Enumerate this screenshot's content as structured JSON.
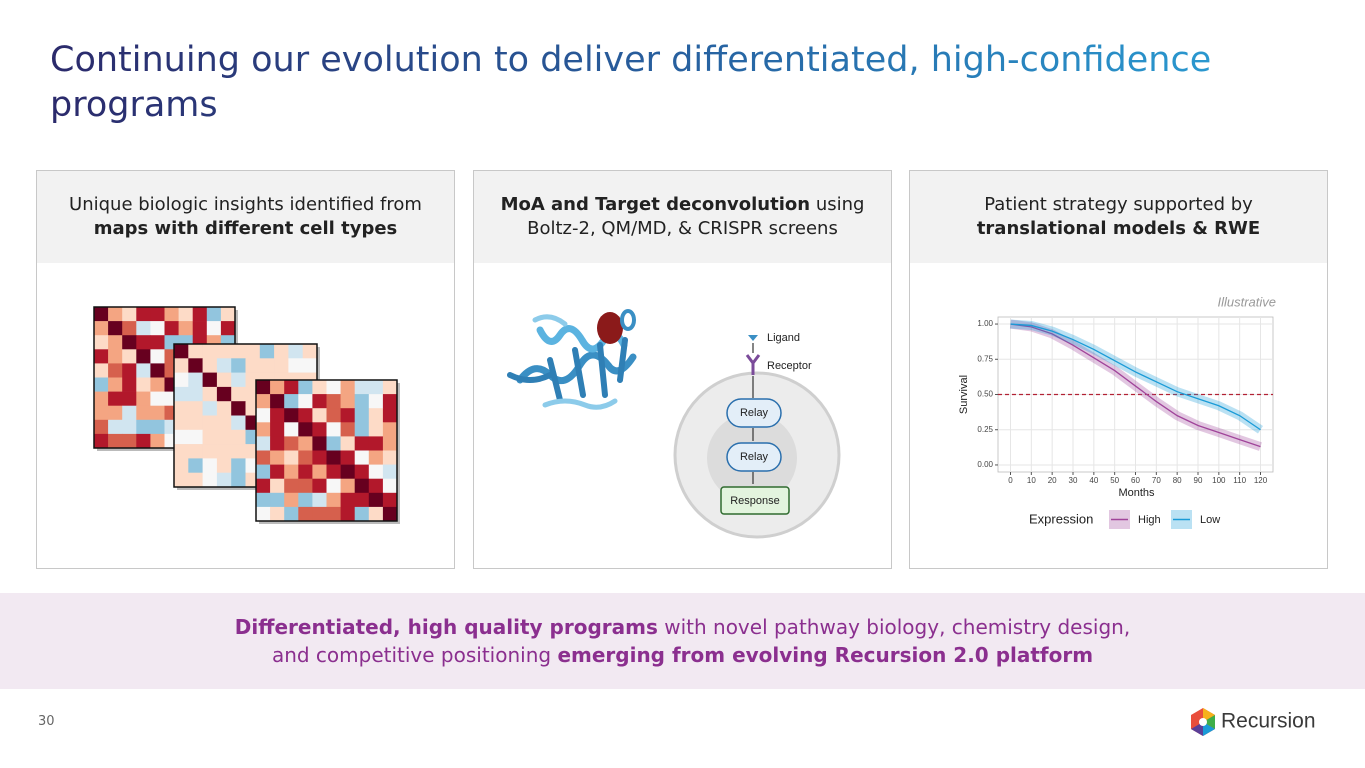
{
  "title": "Continuing our evolution to deliver differentiated, high-confidence programs",
  "panels": [
    {
      "header": [
        "Unique biologic insights identified from",
        "maps with different cell types"
      ]
    },
    {
      "header": [
        "MoA and Target deconvolution",
        "using",
        "Boltz-2, QM/MD, & CRISPR screens"
      ]
    },
    {
      "header": [
        "Patient strategy supported by",
        "translational models & RWE"
      ]
    }
  ],
  "pathway": {
    "ligand": "Ligand",
    "receptor": "Receptor",
    "relays": [
      "Relay",
      "Relay"
    ],
    "response": "Response"
  },
  "survival_chart": {
    "type": "line",
    "note": "Illustrative",
    "x_label": "Months",
    "y_label": "Survival",
    "x": [
      0,
      10,
      20,
      30,
      40,
      50,
      60,
      70,
      80,
      90,
      100,
      110,
      120
    ],
    "series": [
      {
        "name": "High",
        "color": "#a0449a",
        "values": [
          1.0,
          0.98,
          0.93,
          0.85,
          0.76,
          0.67,
          0.56,
          0.45,
          0.35,
          0.28,
          0.23,
          0.18,
          0.13
        ]
      },
      {
        "name": "Low",
        "color": "#1a9bd7",
        "values": [
          1.0,
          0.99,
          0.95,
          0.89,
          0.82,
          0.74,
          0.66,
          0.59,
          0.52,
          0.47,
          0.42,
          0.35,
          0.25
        ]
      }
    ],
    "xlim": [
      -6,
      126
    ],
    "ylim": [
      -0.05,
      1.05
    ],
    "xticks": [
      0,
      10,
      20,
      30,
      40,
      50,
      60,
      70,
      80,
      90,
      100,
      110,
      120
    ],
    "yticks": [
      {
        "value": 0,
        "label": "0.00"
      },
      {
        "value": 0.25,
        "label": "0.25"
      },
      {
        "value": 0.5,
        "label": "0.50"
      },
      {
        "value": 0.75,
        "label": "0.75"
      },
      {
        "value": 1,
        "label": "1.00"
      }
    ],
    "reference_line": 0.5,
    "legend_title": "Expression",
    "grid": true
  },
  "banner": {
    "line1": [
      "Differentiated, high quality programs",
      "with novel pathway biology, chemistry design,"
    ],
    "line2": [
      "and competitive positioning",
      "emerging from evolving Recursion 2.0 platform"
    ]
  },
  "page_number": "30",
  "logo": "Recursion"
}
